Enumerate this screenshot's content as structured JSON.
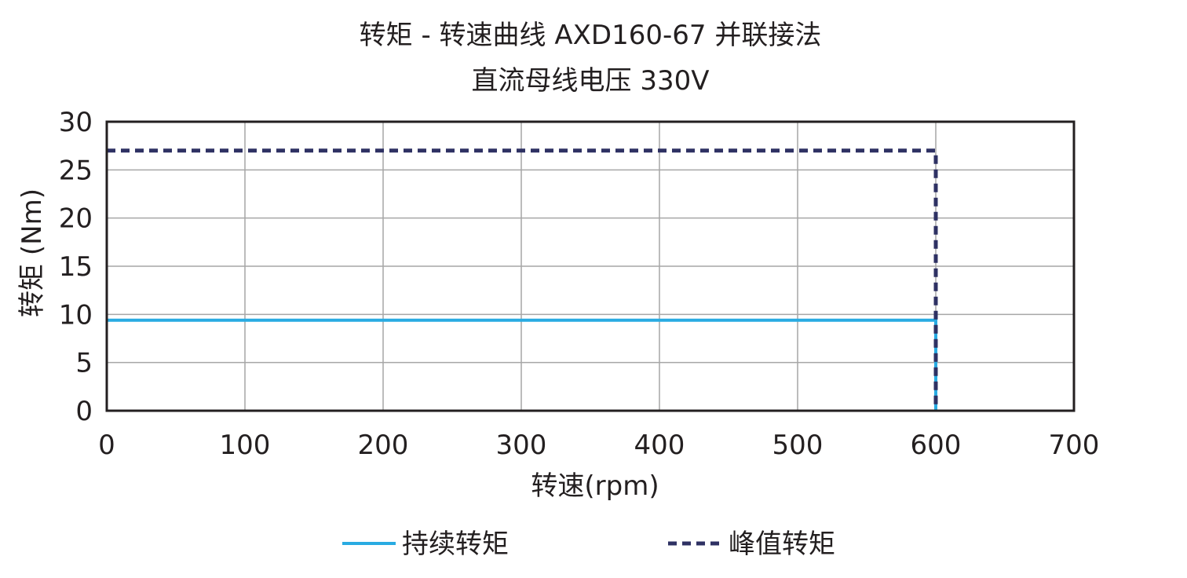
{
  "chart_data": {
    "type": "line",
    "title": "转矩 - 转速曲线 AXD160-67  并联接法",
    "subtitle": "直流母线电压 330V",
    "xlabel": "转速(rpm)",
    "ylabel": "转矩 (Nm)",
    "xlim": [
      0,
      700
    ],
    "ylim": [
      0,
      30
    ],
    "x_ticks": [
      0,
      100,
      200,
      300,
      400,
      500,
      600,
      700
    ],
    "y_ticks": [
      0,
      5,
      10,
      15,
      20,
      25,
      30
    ],
    "x_tick_labels": [
      "0",
      "100",
      "200",
      "300",
      "400",
      "500",
      "600",
      "700"
    ],
    "y_tick_labels": [
      "0",
      "5",
      "10",
      "15",
      "20",
      "25",
      "30"
    ],
    "grid": true,
    "legend_position": "bottom-center",
    "series": [
      {
        "name": "持续转矩",
        "style": "solid",
        "color": "#29abe2",
        "points": [
          [
            0,
            9.4
          ],
          [
            600,
            9.4
          ],
          [
            600,
            0
          ]
        ]
      },
      {
        "name": "峰值转矩",
        "style": "dashed",
        "color": "#2e3163",
        "points": [
          [
            0,
            27
          ],
          [
            600,
            27
          ],
          [
            600,
            0
          ]
        ]
      }
    ]
  }
}
